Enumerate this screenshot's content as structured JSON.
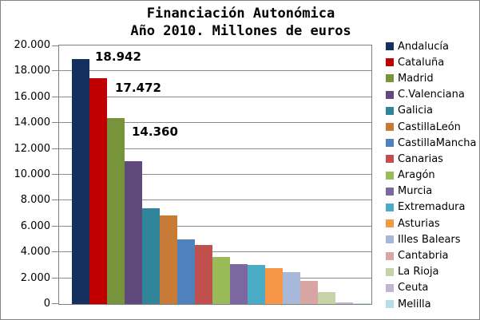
{
  "title": {
    "line1": "Financiación Autonómica",
    "line2": "Año 2010. Millones de euros"
  },
  "chart_data": {
    "type": "bar",
    "title": "Financiación Autonómica",
    "subtitle": "Año 2010. Millones de euros",
    "units": "millones de euros",
    "ylim": [
      0,
      20000
    ],
    "grid": "horizontal",
    "legend_position": "right",
    "yticks": [
      {
        "value": 0,
        "label": "0"
      },
      {
        "value": 2000,
        "label": "2.000"
      },
      {
        "value": 4000,
        "label": "4.000"
      },
      {
        "value": 6000,
        "label": "6.000"
      },
      {
        "value": 8000,
        "label": "8.000"
      },
      {
        "value": 10000,
        "label": "10.000"
      },
      {
        "value": 12000,
        "label": "12.000"
      },
      {
        "value": 14000,
        "label": "14.000"
      },
      {
        "value": 16000,
        "label": "16.000"
      },
      {
        "value": 18000,
        "label": "18.000"
      },
      {
        "value": 20000,
        "label": "20.000"
      }
    ],
    "series": [
      {
        "name": "Andalucía",
        "value": 18942,
        "color": "#14305F"
      },
      {
        "name": "Cataluña",
        "value": 17472,
        "color": "#C00000"
      },
      {
        "name": "Madrid",
        "value": 14360,
        "color": "#77933C"
      },
      {
        "name": "C.Valenciana",
        "value": 11050,
        "color": "#604A7B"
      },
      {
        "name": "Galicia",
        "value": 7420,
        "color": "#31859B"
      },
      {
        "name": "CastillaLeón",
        "value": 6840,
        "color": "#C87B37"
      },
      {
        "name": "CastillaMancha",
        "value": 5030,
        "color": "#4F81BD"
      },
      {
        "name": "Canarias",
        "value": 4540,
        "color": "#C0504D"
      },
      {
        "name": "Aragón",
        "value": 3650,
        "color": "#9BBB59"
      },
      {
        "name": "Murcia",
        "value": 3100,
        "color": "#7C67A1"
      },
      {
        "name": "Extremadura",
        "value": 3030,
        "color": "#4BACC6"
      },
      {
        "name": "Asturias",
        "value": 2790,
        "color": "#F79646"
      },
      {
        "name": "Illes Balears",
        "value": 2450,
        "color": "#A8B8D8"
      },
      {
        "name": "Cantabria",
        "value": 1770,
        "color": "#D9A5A3"
      },
      {
        "name": "La Rioja",
        "value": 900,
        "color": "#C6D3A6"
      },
      {
        "name": "Ceuta",
        "value": 100,
        "color": "#C1B3D3"
      },
      {
        "name": "Melilla",
        "value": 85,
        "color": "#B7DEE8"
      }
    ],
    "annotations": [
      {
        "bar_index": 0,
        "text": "18.942"
      },
      {
        "bar_index": 1,
        "text": "17.472"
      },
      {
        "bar_index": 2,
        "text": "14.360"
      }
    ]
  }
}
